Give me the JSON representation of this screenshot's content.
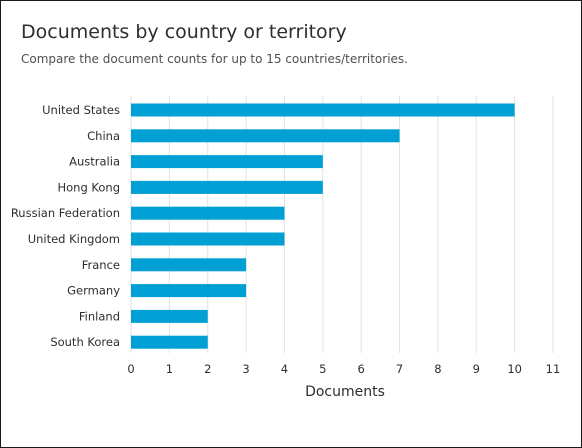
{
  "header": {
    "title": "Documents by country or territory",
    "subtitle": "Compare the document counts for up to 15 countries/territories."
  },
  "chart_data": {
    "type": "bar",
    "orientation": "horizontal",
    "categories": [
      "United States",
      "China",
      "Australia",
      "Hong Kong",
      "Russian Federation",
      "United Kingdom",
      "France",
      "Germany",
      "Finland",
      "South Korea"
    ],
    "values": [
      10,
      7,
      5,
      5,
      4,
      4,
      3,
      3,
      2,
      2
    ],
    "xlabel": "Documents",
    "ylabel": "",
    "xlim": [
      0,
      11
    ],
    "xticks": [
      0,
      1,
      2,
      3,
      4,
      5,
      6,
      7,
      8,
      9,
      10,
      11
    ],
    "grid": "vertical",
    "bar_color": "#009fd4",
    "grid_color": "#e2e2e2"
  }
}
